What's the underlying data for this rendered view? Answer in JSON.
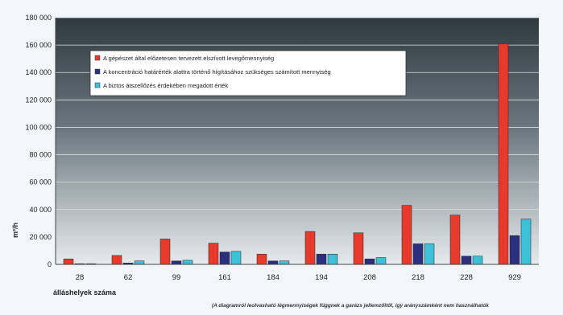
{
  "chart_data": {
    "type": "bar",
    "categories": [
      "28",
      "62",
      "99",
      "161",
      "184",
      "194",
      "208",
      "218",
      "228",
      "929"
    ],
    "series": [
      {
        "name": "A gépészet által előzetesen tervezett elszívott levegőmennyiség",
        "color": "#e83a2c",
        "values": [
          4000,
          6500,
          18500,
          15500,
          7500,
          24000,
          23000,
          43000,
          36000,
          161000
        ]
      },
      {
        "name": "A koncentráció határérték alattra történő hígításához szükséges számított mennyiség",
        "color": "#2a2f7e",
        "values": [
          500,
          1000,
          2500,
          9000,
          2500,
          7500,
          4000,
          15000,
          6000,
          21000
        ]
      },
      {
        "name": "A biztos átszellőzés érdekében megadott érték",
        "color": "#3cc0d8",
        "values": [
          500,
          2500,
          3000,
          9500,
          2500,
          7500,
          5000,
          15000,
          6000,
          33000
        ]
      }
    ],
    "ylim": [
      0,
      180000
    ],
    "yticks": [
      "0",
      "20 000",
      "40 000",
      "60 000",
      "80 000",
      "100 000",
      "120 000",
      "140 000",
      "160 000",
      "180 000"
    ],
    "ylabel": "m³/h",
    "xlabel": "álláshelyek száma",
    "note": "(A diagramról leolvasható légmennyiségek függnek a garázs jellemzőitől, így arányszámként nem használhatók",
    "grid": true,
    "legend_position": "top-left"
  }
}
